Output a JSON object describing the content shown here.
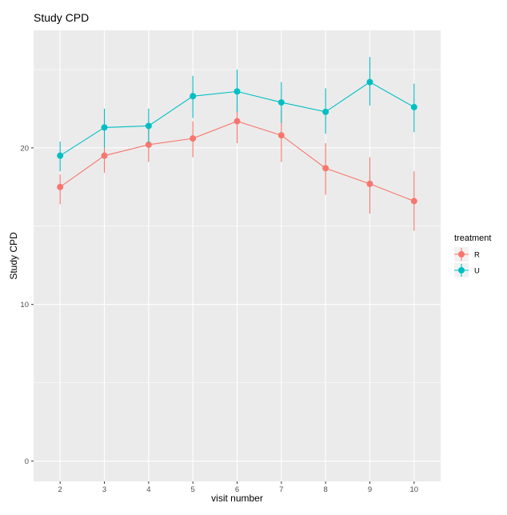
{
  "chart_data": {
    "type": "line",
    "title": "Study CPD",
    "xlabel": "visit number",
    "ylabel": "Study CPD",
    "x": [
      2,
      3,
      4,
      5,
      6,
      7,
      8,
      9,
      10
    ],
    "x_ticks": [
      2,
      3,
      4,
      5,
      6,
      7,
      8,
      9,
      10
    ],
    "y_ticks": [
      0,
      10,
      20
    ],
    "xlim": [
      1.4,
      10.6
    ],
    "ylim": [
      -1.3,
      27.5
    ],
    "grid": true,
    "legend": {
      "title": "treatment",
      "position": "right"
    },
    "series": [
      {
        "name": "R",
        "color": "#F8766D",
        "values": [
          17.5,
          19.5,
          20.2,
          20.6,
          21.7,
          20.8,
          18.7,
          17.7,
          16.6
        ],
        "lower": [
          16.4,
          18.4,
          19.1,
          19.4,
          20.3,
          19.1,
          17.0,
          15.8,
          14.7
        ],
        "upper": [
          18.3,
          20.3,
          21.2,
          21.7,
          22.9,
          22.4,
          20.3,
          19.4,
          18.5
        ]
      },
      {
        "name": "U",
        "color": "#00BFC4",
        "values": [
          19.5,
          21.3,
          21.4,
          23.3,
          23.6,
          22.9,
          22.3,
          24.2,
          22.6
        ],
        "lower": [
          18.5,
          20.0,
          20.3,
          21.9,
          22.3,
          21.6,
          20.9,
          22.7,
          21.0
        ],
        "upper": [
          20.4,
          22.5,
          22.5,
          24.6,
          25.0,
          24.2,
          23.8,
          25.8,
          24.1
        ]
      }
    ]
  }
}
